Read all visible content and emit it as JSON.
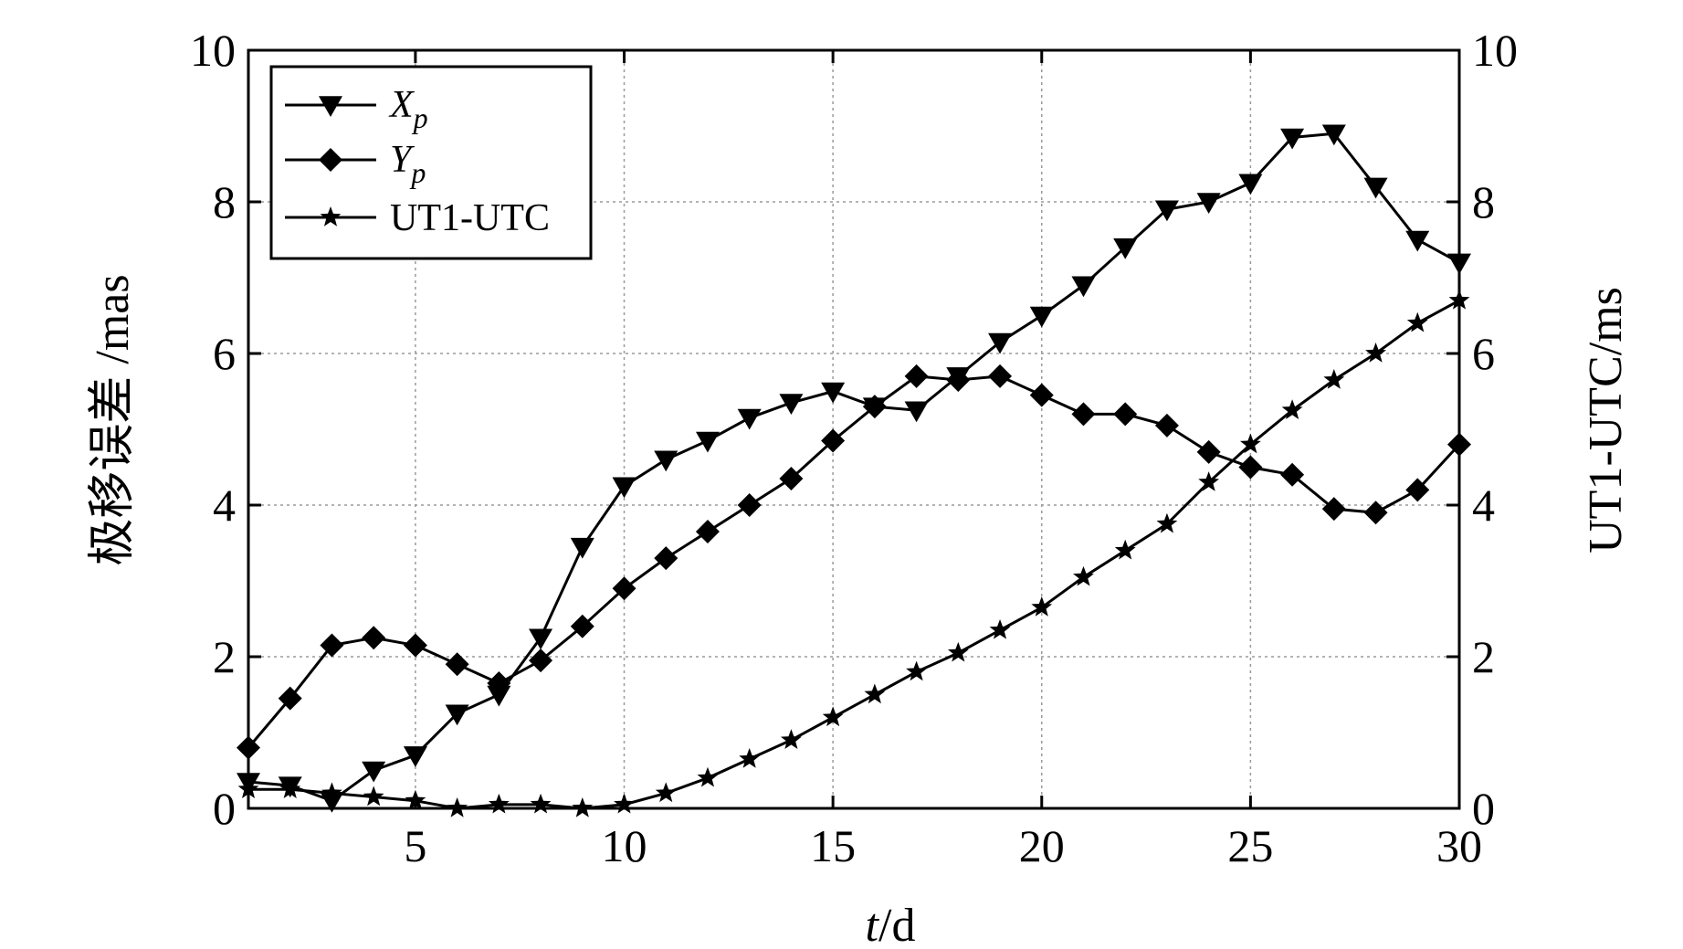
{
  "chart_data": {
    "type": "line",
    "xlabel_italic": "t",
    "xlabel_unit": "/d",
    "ylabel": "极移误差 /mas",
    "y2label": "UT1-UTC/ms",
    "xlim": [
      1,
      30
    ],
    "ylim": [
      0,
      10
    ],
    "y2lim": [
      0,
      10
    ],
    "x_ticks": [
      5,
      10,
      15,
      20,
      25,
      30
    ],
    "y_ticks": [
      0,
      2,
      4,
      6,
      8,
      10
    ],
    "y2_ticks": [
      0,
      2,
      4,
      6,
      8,
      10
    ],
    "grid": true,
    "legend_position": "top-left",
    "x": [
      1,
      2,
      3,
      4,
      5,
      6,
      7,
      8,
      9,
      10,
      11,
      12,
      13,
      14,
      15,
      16,
      17,
      18,
      19,
      20,
      21,
      22,
      23,
      24,
      25,
      26,
      27,
      28,
      29,
      30
    ],
    "series": [
      {
        "name_main": "X",
        "name_sub": "p",
        "axis": "left",
        "marker": "triangle-down",
        "values": [
          0.35,
          0.3,
          0.1,
          0.5,
          0.7,
          1.25,
          1.5,
          2.25,
          3.45,
          4.25,
          4.6,
          4.85,
          5.15,
          5.35,
          5.5,
          5.3,
          5.25,
          5.7,
          6.15,
          6.5,
          6.9,
          7.4,
          7.9,
          8.0,
          8.25,
          8.85,
          8.9,
          8.2,
          7.5,
          7.2
        ]
      },
      {
        "name_main": "Y",
        "name_sub": "p",
        "axis": "left",
        "marker": "diamond",
        "values": [
          0.8,
          1.45,
          2.15,
          2.25,
          2.15,
          1.9,
          1.65,
          1.95,
          2.4,
          2.9,
          3.3,
          3.65,
          4.0,
          4.35,
          4.85,
          5.3,
          5.7,
          5.65,
          5.7,
          5.45,
          5.2,
          5.2,
          5.05,
          4.7,
          4.5,
          4.4,
          3.95,
          3.9,
          4.2,
          4.8
        ]
      },
      {
        "name_main": "UT1-UTC",
        "name_sub": "",
        "axis": "right",
        "marker": "star",
        "values": [
          0.25,
          0.25,
          0.2,
          0.15,
          0.1,
          0.0,
          0.05,
          0.05,
          0.0,
          0.05,
          0.2,
          0.4,
          0.65,
          0.9,
          1.2,
          1.5,
          1.8,
          2.05,
          2.35,
          2.65,
          3.05,
          3.4,
          3.75,
          4.3,
          4.8,
          5.25,
          5.65,
          6.0,
          6.4,
          6.7
        ]
      }
    ]
  }
}
